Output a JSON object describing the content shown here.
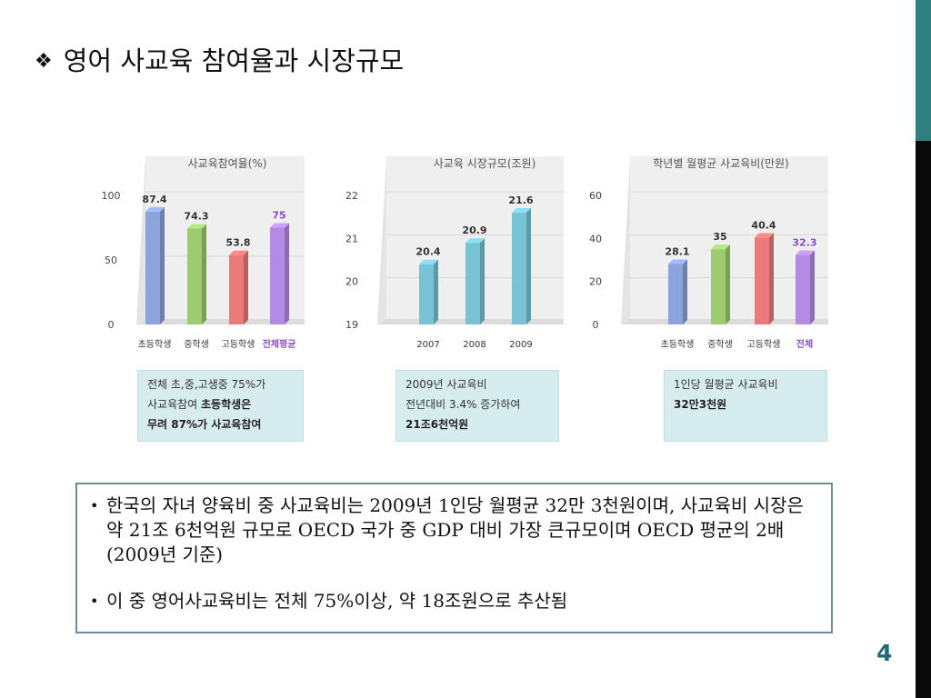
{
  "slide": {
    "title_symbol": "❖",
    "title": "영어 사교육 참여율과 시장규모",
    "page_number": "4"
  },
  "chart_data": [
    {
      "type": "bar",
      "title": "사교육참여율(%)",
      "categories": [
        "초등학생",
        "중학생",
        "고등학생",
        "전체평균"
      ],
      "values": [
        87.4,
        74.3,
        53.8,
        75
      ],
      "value_labels": [
        "87.4",
        "74.3",
        "53.8",
        "75"
      ],
      "yticks": [
        "0",
        "50",
        "100"
      ],
      "ylim": [
        0,
        100
      ],
      "colors": [
        "#8da3dc",
        "#9ccc6f",
        "#ec7a7a",
        "#b38be6"
      ],
      "highlight_color": "#8a4fc8"
    },
    {
      "type": "bar",
      "title": "사교육 시장규모(조원)",
      "categories": [
        "2007",
        "2008",
        "2009"
      ],
      "values": [
        20.4,
        20.9,
        21.6
      ],
      "value_labels": [
        "20.4",
        "20.9",
        "21.6"
      ],
      "yticks": [
        "19",
        "20",
        "21",
        "22"
      ],
      "ylim": [
        19,
        22
      ],
      "colors": [
        "#78c4d6",
        "#78c4d6",
        "#78c4d6"
      ]
    },
    {
      "type": "bar",
      "title": "학년별 월평균 사교육비(만원)",
      "categories": [
        "초등학생",
        "중학생",
        "고등학생",
        "전체"
      ],
      "values": [
        28.1,
        35,
        40.4,
        32.3
      ],
      "value_labels": [
        "28.1",
        "35",
        "40.4",
        "32.3"
      ],
      "yticks": [
        "0",
        "20",
        "40",
        "60"
      ],
      "ylim": [
        0,
        60
      ],
      "colors": [
        "#8da3dc",
        "#9ccc6f",
        "#ec7a7a",
        "#b38be6"
      ],
      "highlight_color": "#8a4fc8"
    }
  ],
  "callouts": [
    {
      "line1": "전체 초,중,고생중 75%가",
      "line2_plain": "사교육참여 ",
      "line2_bold": "초등학생은",
      "line3_bold": "무려 87%가 사교육참여"
    },
    {
      "line1": "2009년 사교육비",
      "line2": "전년대비 3.4% 증가하여",
      "line3_bold": "21조6천억원"
    },
    {
      "line1": "1인당 월평균 사교육비",
      "line2_bold": "32만3천원"
    }
  ],
  "bullets": [
    "한국의 자녀 양육비 중 사교육비는 2009년 1인당 월평균 32만 3천원이며, 사교육비 시장은 약 21조 6천억원 규모로 OECD 국가 중 GDP 대비 가장 큰규모이며 OECD 평균의 2배 (2009년 기준)",
    "이 중 영어사교육비는 전체 75%이상, 약 18조원으로 추산됨"
  ]
}
